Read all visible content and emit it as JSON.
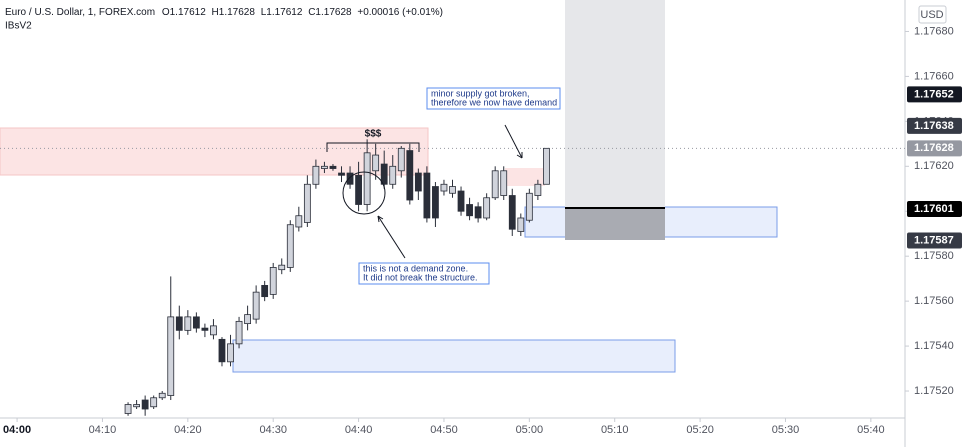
{
  "chart_data": {
    "type": "candlestick",
    "title": "Euro / U.S. Dollar, 1, FOREX.com",
    "ohlc_legend": [
      "O1.17612",
      "H1.17628",
      "L1.17612",
      "C1.17628",
      "+0.00016 (+0.01%)"
    ],
    "subtitle": "IBsV2",
    "currency": "USD",
    "x": [
      "04:13",
      "04:14",
      "04:15",
      "04:16",
      "04:17",
      "04:18",
      "04:19",
      "04:20",
      "04:21",
      "04:22",
      "04:23",
      "04:24",
      "04:25",
      "04:26",
      "04:27",
      "04:28",
      "04:29",
      "04:30",
      "04:31",
      "04:32",
      "04:33",
      "04:34",
      "04:35",
      "04:36",
      "04:37",
      "04:38",
      "04:39",
      "04:40",
      "04:41",
      "04:42",
      "04:43",
      "04:44",
      "04:45",
      "04:46",
      "04:47",
      "04:48",
      "04:49",
      "04:50",
      "04:51",
      "04:52",
      "04:53",
      "04:54",
      "04:55",
      "04:56",
      "04:57",
      "04:58",
      "04:59",
      "05:00",
      "05:01",
      "05:02"
    ],
    "open": [
      1.1751,
      1.17513,
      1.17516,
      1.17513,
      1.17517,
      1.17518,
      1.17553,
      1.17547,
      1.17553,
      1.17548,
      1.17545,
      1.17543,
      1.17533,
      1.17541,
      1.1755,
      1.17552,
      1.17567,
      1.17563,
      1.17574,
      1.17575,
      1.17593,
      1.17595,
      1.17612,
      1.17619,
      1.1762,
      1.17617,
      1.17617,
      1.17616,
      1.17603,
      1.17618,
      1.17621,
      1.17612,
      1.17618,
      1.17627,
      1.17617,
      1.17617,
      1.17611,
      1.17609,
      1.17608,
      1.17609,
      1.17603,
      1.17602,
      1.17597,
      1.17606,
      1.17607,
      1.17607,
      1.17591,
      1.17596,
      1.17607,
      1.17612
    ],
    "high": [
      1.17515,
      1.17516,
      1.17518,
      1.17518,
      1.1752,
      1.17571,
      1.17558,
      1.17556,
      1.17555,
      1.1755,
      1.17552,
      1.17544,
      1.17545,
      1.17553,
      1.17558,
      1.17567,
      1.17569,
      1.17577,
      1.17579,
      1.17596,
      1.17602,
      1.17616,
      1.17623,
      1.17622,
      1.17621,
      1.1762,
      1.1762,
      1.17622,
      1.17632,
      1.1763,
      1.17627,
      1.17625,
      1.17629,
      1.1763,
      1.17619,
      1.1762,
      1.17613,
      1.17614,
      1.17614,
      1.17611,
      1.17606,
      1.17604,
      1.17608,
      1.1762,
      1.1762,
      1.1761,
      1.17599,
      1.1761,
      1.17614,
      1.17628
    ],
    "low": [
      1.17509,
      1.17512,
      1.17509,
      1.17512,
      1.17516,
      1.17516,
      1.17543,
      1.17545,
      1.17546,
      1.17544,
      1.17543,
      1.17531,
      1.17531,
      1.17539,
      1.17547,
      1.1755,
      1.1756,
      1.17561,
      1.17572,
      1.17573,
      1.17591,
      1.17593,
      1.1761,
      1.17617,
      1.17618,
      1.17613,
      1.1761,
      1.176,
      1.176,
      1.17614,
      1.1761,
      1.1761,
      1.17615,
      1.17603,
      1.17605,
      1.17595,
      1.17593,
      1.17607,
      1.17606,
      1.17598,
      1.17596,
      1.17595,
      1.17596,
      1.17605,
      1.17605,
      1.17589,
      1.17589,
      1.17595,
      1.17605,
      1.17612
    ],
    "close": [
      1.17514,
      1.17514,
      1.17512,
      1.17517,
      1.17519,
      1.17553,
      1.17547,
      1.17553,
      1.17548,
      1.17547,
      1.17549,
      1.17533,
      1.17541,
      1.17551,
      1.17554,
      1.17564,
      1.17562,
      1.17575,
      1.17576,
      1.17594,
      1.17598,
      1.17612,
      1.1762,
      1.1762,
      1.17619,
      1.17616,
      1.17612,
      1.17603,
      1.17626,
      1.17625,
      1.17612,
      1.1762,
      1.17628,
      1.17605,
      1.17609,
      1.17597,
      1.17597,
      1.17612,
      1.17611,
      1.176,
      1.17598,
      1.17597,
      1.17606,
      1.17618,
      1.17618,
      1.17592,
      1.17597,
      1.17608,
      1.17612,
      1.17628
    ],
    "up_color": "#d1d4dc",
    "down_color": "#2a2e39",
    "xlim": [
      "03:58",
      "05:44"
    ],
    "xticks": [
      "04:00",
      "04:10",
      "04:20",
      "04:30",
      "04:40",
      "04:50",
      "05:00",
      "05:10",
      "05:20",
      "05:30",
      "05:40"
    ],
    "ylim": [
      1.17508,
      1.17694
    ],
    "yticks": [
      {
        "value": 1.1752,
        "label": "1.17520"
      },
      {
        "value": 1.1754,
        "label": "1.17540"
      },
      {
        "value": 1.1756,
        "label": "1.17560"
      },
      {
        "value": 1.1758,
        "label": "1.17580"
      },
      {
        "value": 1.176,
        "label": "1.17600"
      },
      {
        "value": 1.1762,
        "label": "1.17620"
      },
      {
        "value": 1.1764,
        "label": "1.17640"
      },
      {
        "value": 1.1766,
        "label": "1.17660"
      },
      {
        "value": 1.1768,
        "label": "1.17680"
      }
    ],
    "price_markers": [
      {
        "value": 1.17652,
        "color": "#131722"
      },
      {
        "value": 1.17638,
        "color": "#363a45"
      },
      {
        "value": 1.17628,
        "color": "#9598a1"
      },
      {
        "value": 1.17601,
        "color": "#000000"
      },
      {
        "value": 1.17587,
        "color": "#363a45"
      }
    ],
    "annotations": {
      "money": "$$$",
      "supply": [
        "minor supply got broken,",
        "therefore we now have demand"
      ],
      "not_demand": [
        "this is not a demand zone.",
        "It did not break the structure."
      ]
    }
  }
}
